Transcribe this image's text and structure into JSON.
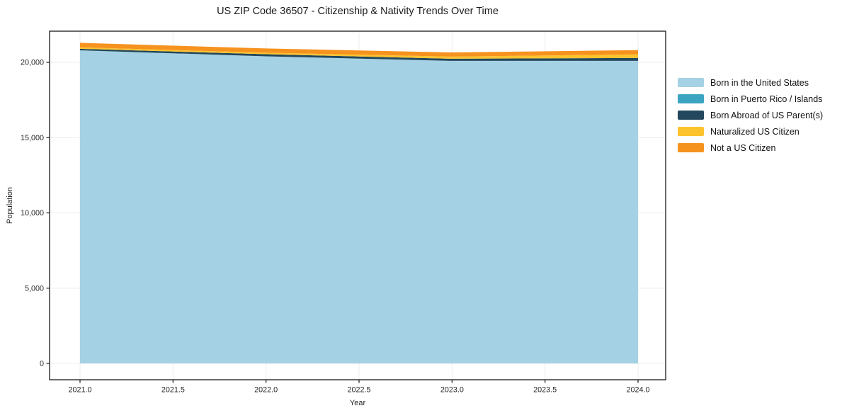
{
  "title": "US ZIP Code 36507 - Citizenship & Nativity Trends Over Time",
  "chart_data": {
    "type": "area",
    "stacked": true,
    "title": "US ZIP Code 36507 - Citizenship & Nativity Trends Over Time",
    "xlabel": "Year",
    "ylabel": "Population",
    "x": [
      2021,
      2022,
      2023,
      2024
    ],
    "series": [
      {
        "name": "Born in the United States",
        "color": "#a5d1e4",
        "values": [
          20800,
          20400,
          20100,
          20100
        ]
      },
      {
        "name": "Born in Puerto Rico / Islands",
        "color": "#3ba4c1",
        "values": [
          0,
          0,
          0,
          0
        ]
      },
      {
        "name": "Born Abroad of US Parent(s)",
        "color": "#23475c",
        "values": [
          100,
          140,
          140,
          190
        ]
      },
      {
        "name": "Naturalized US Citizen",
        "color": "#fcc32d",
        "values": [
          100,
          100,
          140,
          240
        ]
      },
      {
        "name": "Not a US Citizen",
        "color": "#f6921e",
        "values": [
          300,
          280,
          280,
          280
        ]
      }
    ],
    "xticks": [
      2021.0,
      2021.5,
      2022.0,
      2022.5,
      2023.0,
      2023.5,
      2024.0
    ],
    "xtick_labels": [
      "2021.0",
      "2021.5",
      "2022.0",
      "2022.5",
      "2023.0",
      "2023.5",
      "2024.0"
    ],
    "yticks": [
      0,
      5000,
      10000,
      15000,
      20000
    ],
    "ytick_labels": [
      "0",
      "5,000",
      "10,000",
      "15,000",
      "20,000"
    ],
    "xlim": [
      2020.84,
      2024.15
    ],
    "ylim": [
      -1080,
      22070
    ],
    "grid": true,
    "legend_position": "right"
  },
  "colors": {
    "grid": "#ececec",
    "frame": "#1a1a1a",
    "background": "#ffffff"
  }
}
